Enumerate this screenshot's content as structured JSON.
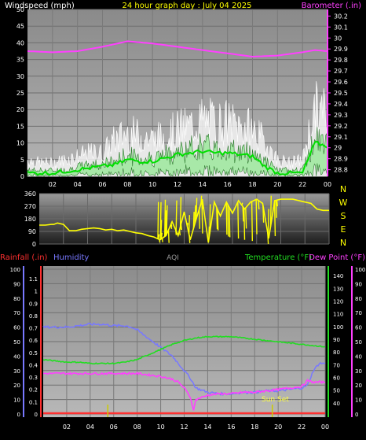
{
  "title": "24 hour graph day : July 04 2025",
  "colors": {
    "title": "#ffff00",
    "wind": "#ffffff",
    "gust_fill": "#f2f2f2",
    "avg_wind": "#00e000",
    "barometer": "#ff40ff",
    "direction": "#ffff00",
    "temperature": "#22dd22",
    "dew_point": "#ff40ff",
    "humidity": "#7878ff",
    "rainfall": "#ff3030",
    "sunset": "#cccc00",
    "aqi": "#dddddd"
  },
  "chart_data": [
    {
      "type": "line",
      "title": "24 hour graph day : July 04 2025",
      "left_label": "Windspeed (mph)",
      "right_label": "Barometer (.in)",
      "x_ticks": [
        "02",
        "04",
        "06",
        "08",
        "10",
        "12",
        "14",
        "16",
        "18",
        "20",
        "22",
        "00"
      ],
      "y_left_ticks": [
        "0",
        "5",
        "10",
        "15",
        "20",
        "25",
        "30",
        "35",
        "40",
        "45",
        "50"
      ],
      "y_left_range": [
        0,
        50
      ],
      "y_right_ticks": [
        "28.8",
        "28.9",
        "29",
        "29.1",
        "29.2",
        "29.3",
        "29.4",
        "29.5",
        "29.6",
        "29.7",
        "29.8",
        "29.9",
        "30",
        "30.1",
        "30.2"
      ],
      "y_right_range": [
        28.74,
        30.26
      ],
      "grid": true,
      "series": [
        {
          "name": "Windspeed",
          "axis": "left",
          "style": "gust",
          "x": [
            0,
            1,
            2,
            3,
            4,
            5,
            6,
            7,
            8,
            9,
            10,
            11,
            12,
            13,
            14,
            15,
            16,
            17,
            18,
            19,
            20,
            21,
            22,
            23,
            24
          ],
          "values": [
            5,
            4,
            4,
            5,
            6,
            7,
            7,
            11,
            13,
            12,
            11,
            12,
            14,
            15,
            17,
            16,
            16,
            15,
            14,
            10,
            5,
            4,
            5,
            20,
            19
          ]
        },
        {
          "name": "Windspeed",
          "axis": "left",
          "style": "wind",
          "x": [
            0,
            1,
            2,
            3,
            4,
            5,
            6,
            7,
            8,
            9,
            10,
            11,
            12,
            13,
            14,
            15,
            16,
            17,
            18,
            19,
            20,
            21,
            22,
            23,
            24
          ],
          "values": [
            2,
            2,
            2,
            2,
            3,
            4,
            4,
            5,
            7,
            6,
            6,
            7,
            8,
            9,
            10,
            9,
            9,
            8,
            8,
            5,
            2,
            2,
            2,
            12,
            10
          ]
        },
        {
          "name": "Windspeed",
          "axis": "left",
          "style": "avg",
          "x": [
            0,
            1,
            2,
            3,
            4,
            5,
            6,
            7,
            8,
            9,
            10,
            11,
            12,
            13,
            14,
            15,
            16,
            17,
            18,
            19,
            20,
            21,
            22,
            23,
            24
          ],
          "values": [
            1,
            1,
            1,
            1.5,
            2,
            2.5,
            3,
            3.5,
            5,
            4.5,
            4.5,
            5.5,
            6.5,
            7,
            7.5,
            7,
            7,
            6.5,
            6,
            3,
            1,
            1,
            1,
            10,
            9
          ]
        },
        {
          "name": "Barometer",
          "axis": "right",
          "style": "baro",
          "x": [
            0,
            2,
            4,
            6,
            8,
            10,
            12,
            14,
            16,
            18,
            20,
            22,
            23,
            24
          ],
          "values": [
            29.88,
            29.87,
            29.88,
            29.92,
            29.97,
            29.95,
            29.92,
            29.89,
            29.86,
            29.83,
            29.84,
            29.87,
            29.89,
            29.88
          ]
        }
      ]
    },
    {
      "type": "line",
      "title": "",
      "x_ticks": [
        "02",
        "04",
        "06",
        "08",
        "10",
        "12",
        "14",
        "16",
        "18",
        "20",
        "22",
        "00"
      ],
      "y_left_ticks": [
        "0",
        "90",
        "180",
        "270",
        "360"
      ],
      "y_left_range": [
        0,
        360
      ],
      "y_right_ticks": [
        "N",
        "W",
        "S",
        "E",
        "N"
      ],
      "grid": true,
      "series": [
        {
          "name": "Wind Direction",
          "axis": "left",
          "x": [
            0,
            0.5,
            1,
            1.2,
            1.5,
            2,
            2.5,
            3,
            3.5,
            4,
            4.5,
            5,
            5.5,
            6,
            6.5,
            7,
            7.5,
            8,
            8.5,
            9,
            9.5,
            10,
            10.5,
            11,
            11.5,
            12,
            12.5,
            13,
            13.5,
            14,
            14.5,
            15,
            15.5,
            16,
            16.5,
            17,
            17.5,
            18,
            18.5,
            19,
            19.5,
            20,
            20.5,
            21,
            21.5,
            22,
            22.5,
            23,
            23.5,
            24
          ],
          "values": [
            135,
            135,
            140,
            140,
            150,
            140,
            95,
            95,
            105,
            110,
            115,
            110,
            100,
            105,
            95,
            100,
            90,
            80,
            75,
            60,
            50,
            30,
            60,
            160,
            60,
            230,
            30,
            180,
            320,
            10,
            300,
            200,
            300,
            220,
            310,
            250,
            300,
            320,
            290,
            40,
            310,
            320,
            320,
            320,
            310,
            300,
            290,
            250,
            240,
            240
          ]
        }
      ]
    },
    {
      "type": "line",
      "title": "",
      "left_outer_label": "Rainfall (.in)",
      "left_inner_label": "Humidity",
      "center_label": "AQI",
      "right_label_1": "Temperature (°F)",
      "right_label_2": "Dew Point (°F)",
      "annotation": "Sun Set",
      "x_ticks": [
        "02",
        "04",
        "06",
        "08",
        "10",
        "12",
        "14",
        "16",
        "18",
        "20",
        "22",
        "00"
      ],
      "rain_ticks": [
        "0",
        "0.1",
        "0.2",
        "0.3",
        "0.4",
        "0.5",
        "0.6",
        "0.7",
        "0.8",
        "0.9",
        "1",
        "1.1"
      ],
      "rain_range": [
        0,
        1.1
      ],
      "humidity_ticks": [
        "0",
        "10",
        "20",
        "30",
        "40",
        "50",
        "60",
        "70",
        "80",
        "90",
        "100"
      ],
      "humidity_range": [
        0,
        100
      ],
      "temp_ticks": [
        "40",
        "50",
        "60",
        "70",
        "80",
        "90",
        "100",
        "110",
        "120",
        "130",
        "140"
      ],
      "temp_range": [
        30,
        145
      ],
      "dewpoint_ticks": [
        "0",
        "10",
        "20",
        "30",
        "40",
        "50",
        "60",
        "70",
        "80",
        "90",
        "100"
      ],
      "grid": true,
      "series": [
        {
          "name": "Humidity",
          "axis": "humidity",
          "x": [
            0,
            1,
            2,
            3,
            4,
            5,
            6,
            7,
            7.5,
            8,
            9,
            10,
            11,
            11.5,
            12,
            12.5,
            13,
            14,
            15,
            16,
            17,
            18,
            19,
            20,
            21,
            22,
            22.5,
            23,
            23.5,
            24
          ],
          "values": [
            60,
            60,
            60,
            61,
            62,
            62,
            61,
            61,
            60,
            58,
            52,
            46,
            40,
            35,
            30,
            25,
            18,
            15,
            14,
            14,
            15,
            15,
            16,
            16,
            17,
            18,
            20,
            30,
            35,
            35
          ]
        },
        {
          "name": "Temperature",
          "axis": "temp",
          "x": [
            0,
            1,
            2,
            3,
            4,
            5,
            6,
            7,
            8,
            9,
            10,
            11,
            12,
            13,
            14,
            15,
            16,
            17,
            18,
            19,
            20,
            21,
            22,
            23,
            24
          ],
          "values": [
            74,
            73,
            72,
            72,
            71,
            71,
            71,
            72,
            74,
            78,
            82,
            86,
            89,
            91,
            92,
            92,
            92,
            91,
            90,
            89,
            88,
            87,
            86,
            85,
            84
          ]
        },
        {
          "name": "Dew Point",
          "axis": "dewpoint",
          "x": [
            0,
            1,
            2,
            3,
            4,
            5,
            6,
            7,
            8,
            9,
            10,
            11,
            11.5,
            12,
            12.5,
            12.8,
            13,
            14,
            15,
            16,
            17,
            18,
            19,
            20,
            21,
            22,
            22.5,
            23,
            24
          ],
          "values": [
            28,
            28,
            28,
            28,
            28,
            28,
            28,
            28,
            28,
            27,
            26,
            24,
            22,
            18,
            12,
            3,
            10,
            13,
            14,
            14,
            15,
            15,
            16,
            17,
            18,
            19,
            23,
            22,
            22
          ]
        },
        {
          "name": "Rainfall",
          "axis": "rain",
          "x": [
            0,
            24
          ],
          "values": [
            0,
            0
          ]
        }
      ],
      "sun_events_x": [
        5.5,
        19.5
      ]
    }
  ]
}
